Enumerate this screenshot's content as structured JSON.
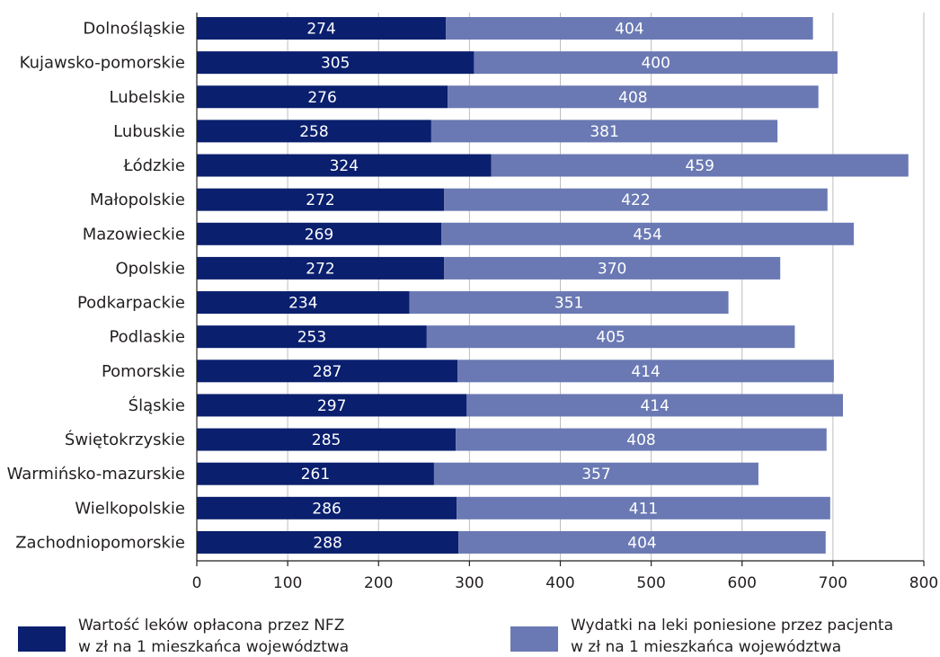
{
  "chart_data": {
    "type": "bar",
    "orientation": "horizontal",
    "stacked": true,
    "categories": [
      "Dolnośląskie",
      "Kujawsko-pomorskie",
      "Lubelskie",
      "Lubuskie",
      "Łódzkie",
      "Małopolskie",
      "Mazowieckie",
      "Opolskie",
      "Podkarpackie",
      "Podlaskie",
      "Pomorskie",
      "Śląskie",
      "Świętokrzyskie",
      "Warmińsko-mazurskie",
      "Wielkopolskie",
      "Zachodniopomorskie"
    ],
    "series": [
      {
        "legend_lines": [
          "Wartość leków opłacona przez NFZ",
          "w zł na 1 mieszkańca województwa"
        ],
        "color": "#0a1f6e",
        "values": [
          274,
          305,
          276,
          258,
          324,
          272,
          269,
          272,
          234,
          253,
          287,
          297,
          285,
          261,
          286,
          288
        ]
      },
      {
        "legend_lines": [
          "Wydatki na leki poniesione przez pacjenta",
          "w zł na 1 mieszkańca województwa"
        ],
        "color": "#6a79b3",
        "values": [
          404,
          400,
          408,
          381,
          459,
          422,
          454,
          370,
          351,
          405,
          414,
          414,
          408,
          357,
          411,
          404
        ]
      }
    ],
    "xlim": [
      0,
      800
    ],
    "xticks": [
      0,
      100,
      200,
      300,
      400,
      500,
      600,
      700,
      800
    ],
    "grid": "vertical",
    "legend_position": "bottom"
  }
}
